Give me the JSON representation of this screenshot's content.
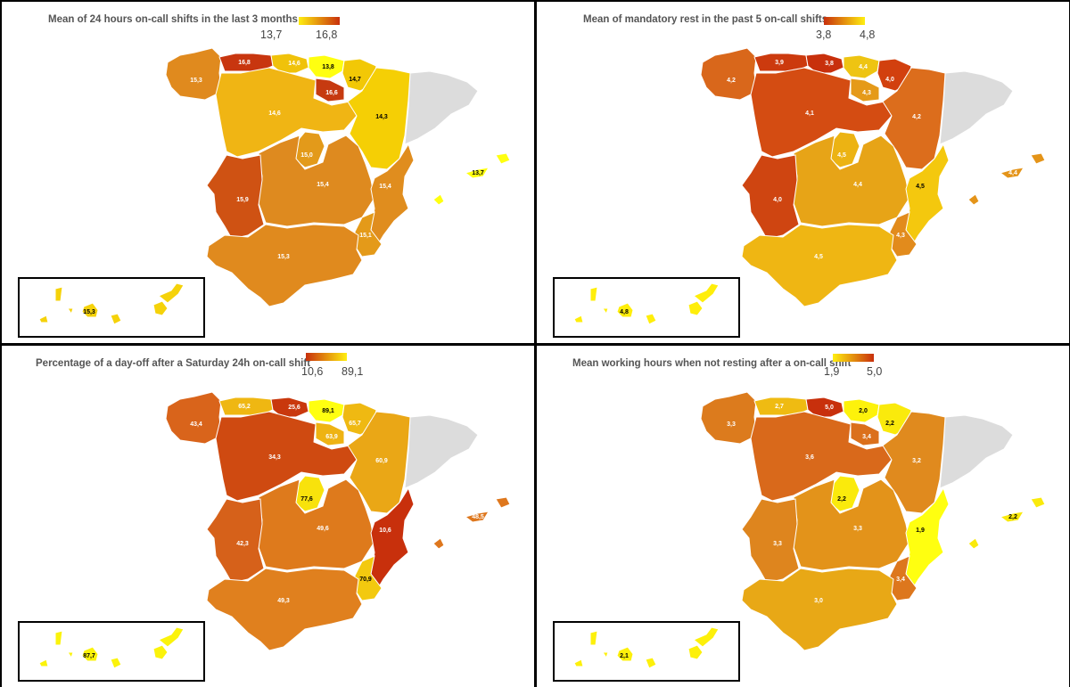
{
  "panels": [
    {
      "title": "Mean of 24 hours on-call shifts in the last 3 months",
      "legend": {
        "low": "13,7",
        "high": "16,8",
        "direction": "low-yellow-high-red"
      },
      "labels": {
        "galicia": "15,3",
        "asturias": "16,8",
        "cantabria": "14,6",
        "pais_vasco": "13,8",
        "navarra": "14,7",
        "la_rioja": "16,6",
        "castilla_leon": "14,6",
        "aragon": "14,3",
        "madrid": "15,0",
        "castilla_la_mancha": "15,4",
        "extremadura": "15,9",
        "valencia": "15,4",
        "murcia": "15,1",
        "andalucia": "15,3",
        "baleares": "13,7",
        "canarias": "15,3"
      },
      "colors": {
        "galicia": "#e08a1e",
        "asturias": "#c8360f",
        "cantabria": "#f0c20a",
        "pais_vasco": "#ffff10",
        "navarra": "#f2c806",
        "la_rioja": "#c63a10",
        "castilla_leon": "#f0b514",
        "aragon": "#f5cf05",
        "madrid": "#e39a1a",
        "castilla_la_mancha": "#de8a1f",
        "extremadura": "#cf5213",
        "valencia": "#e08d1e",
        "murcia": "#e49a19",
        "andalucia": "#e08a1e",
        "baleares": "#ffff10",
        "canarias": "#f5d20a"
      }
    },
    {
      "title": "Mean of mandatory rest in the past 5 on-call shifts",
      "legend": {
        "low": "3,8",
        "high": "4,8",
        "direction": "low-red-high-yellow"
      },
      "labels": {
        "galicia": "4,2",
        "asturias": "3,9",
        "cantabria": "3,8",
        "pais_vasco": "4,4",
        "navarra": "4,0",
        "la_rioja": "4,3",
        "castilla_leon": "4,1",
        "aragon": "4,2",
        "madrid": "4,5",
        "castilla_la_mancha": "4,4",
        "extremadura": "4,0",
        "valencia": "4,5",
        "murcia": "4,3",
        "andalucia": "4,5",
        "baleares": "4,4",
        "canarias": "4,8"
      },
      "colors": {
        "galicia": "#d9671b",
        "asturias": "#cc3a0e",
        "cantabria": "#c8300c",
        "pais_vasco": "#eec412",
        "navarra": "#d2400e",
        "la_rioja": "#e59a19",
        "castilla_leon": "#d44c12",
        "aragon": "#dc6d1c",
        "madrid": "#ecb313",
        "castilla_la_mancha": "#e7a417",
        "extremadura": "#cf4511",
        "valencia": "#f4c80e",
        "murcia": "#e28b1c",
        "andalucia": "#efb613",
        "baleares": "#e49419",
        "canarias": "#ffee0a"
      }
    },
    {
      "title": "Percentage of a day-off after a Saturday 24h on-call shift",
      "legend": {
        "low": "10,6",
        "high": "89,1",
        "direction": "low-red-high-yellow"
      },
      "labels": {
        "galicia": "43,4",
        "asturias": "65,2",
        "cantabria": "25,6",
        "pais_vasco": "89,1",
        "navarra": "65,7",
        "la_rioja": "63,9",
        "castilla_leon": "34,3",
        "aragon": "60,9",
        "madrid": "77,6",
        "castilla_la_mancha": "49,6",
        "extremadura": "42,3",
        "valencia": "10,6",
        "murcia": "70,9",
        "andalucia": "49,3",
        "baleares": "48,5",
        "canarias": "87,7"
      },
      "colors": {
        "galicia": "#d9641b",
        "asturias": "#efb712",
        "cantabria": "#c9380d",
        "pais_vasco": "#ffff10",
        "navarra": "#efb912",
        "la_rioja": "#eeb313",
        "castilla_leon": "#cf4a11",
        "aragon": "#eaa716",
        "madrid": "#f8e20c",
        "castilla_la_mancha": "#de7a1c",
        "extremadura": "#d6611a",
        "valencia": "#c8300c",
        "murcia": "#f3c90f",
        "andalucia": "#e0801e",
        "baleares": "#de771d",
        "canarias": "#fbf30b"
      }
    },
    {
      "title": "Mean working hours when not resting after a on-call shift",
      "legend": {
        "low": "1,9",
        "high": "5,0",
        "direction": "low-yellow-high-red"
      },
      "labels": {
        "galicia": "3,3",
        "asturias": "2,7",
        "cantabria": "5,0",
        "pais_vasco": "2,0",
        "navarra": "2,2",
        "la_rioja": "3,4",
        "castilla_leon": "3,6",
        "aragon": "3,2",
        "madrid": "2,2",
        "castilla_la_mancha": "3,3",
        "extremadura": "3,3",
        "valencia": "1,9",
        "murcia": "3,4",
        "andalucia": "3,0",
        "baleares": "2,2",
        "canarias": "2,1"
      },
      "colors": {
        "galicia": "#dc7b1d",
        "asturias": "#efbb12",
        "cantabria": "#c8300c",
        "pais_vasco": "#fdf20b",
        "navarra": "#faea0c",
        "la_rioja": "#db701c",
        "castilla_leon": "#d9691b",
        "aragon": "#e08a1e",
        "madrid": "#faea0c",
        "castilla_la_mancha": "#e3931a",
        "extremadura": "#de851e",
        "valencia": "#ffff10",
        "murcia": "#dd771d",
        "andalucia": "#e8a816",
        "baleares": "#faea0c",
        "canarias": "#fdf00b"
      }
    }
  ],
  "colors": {
    "catalonia": "#dcdcdc",
    "scale_red": "#c8300c",
    "scale_yellow": "#ffee10",
    "label_dark": "#000000",
    "label_light": "#ffffff"
  }
}
